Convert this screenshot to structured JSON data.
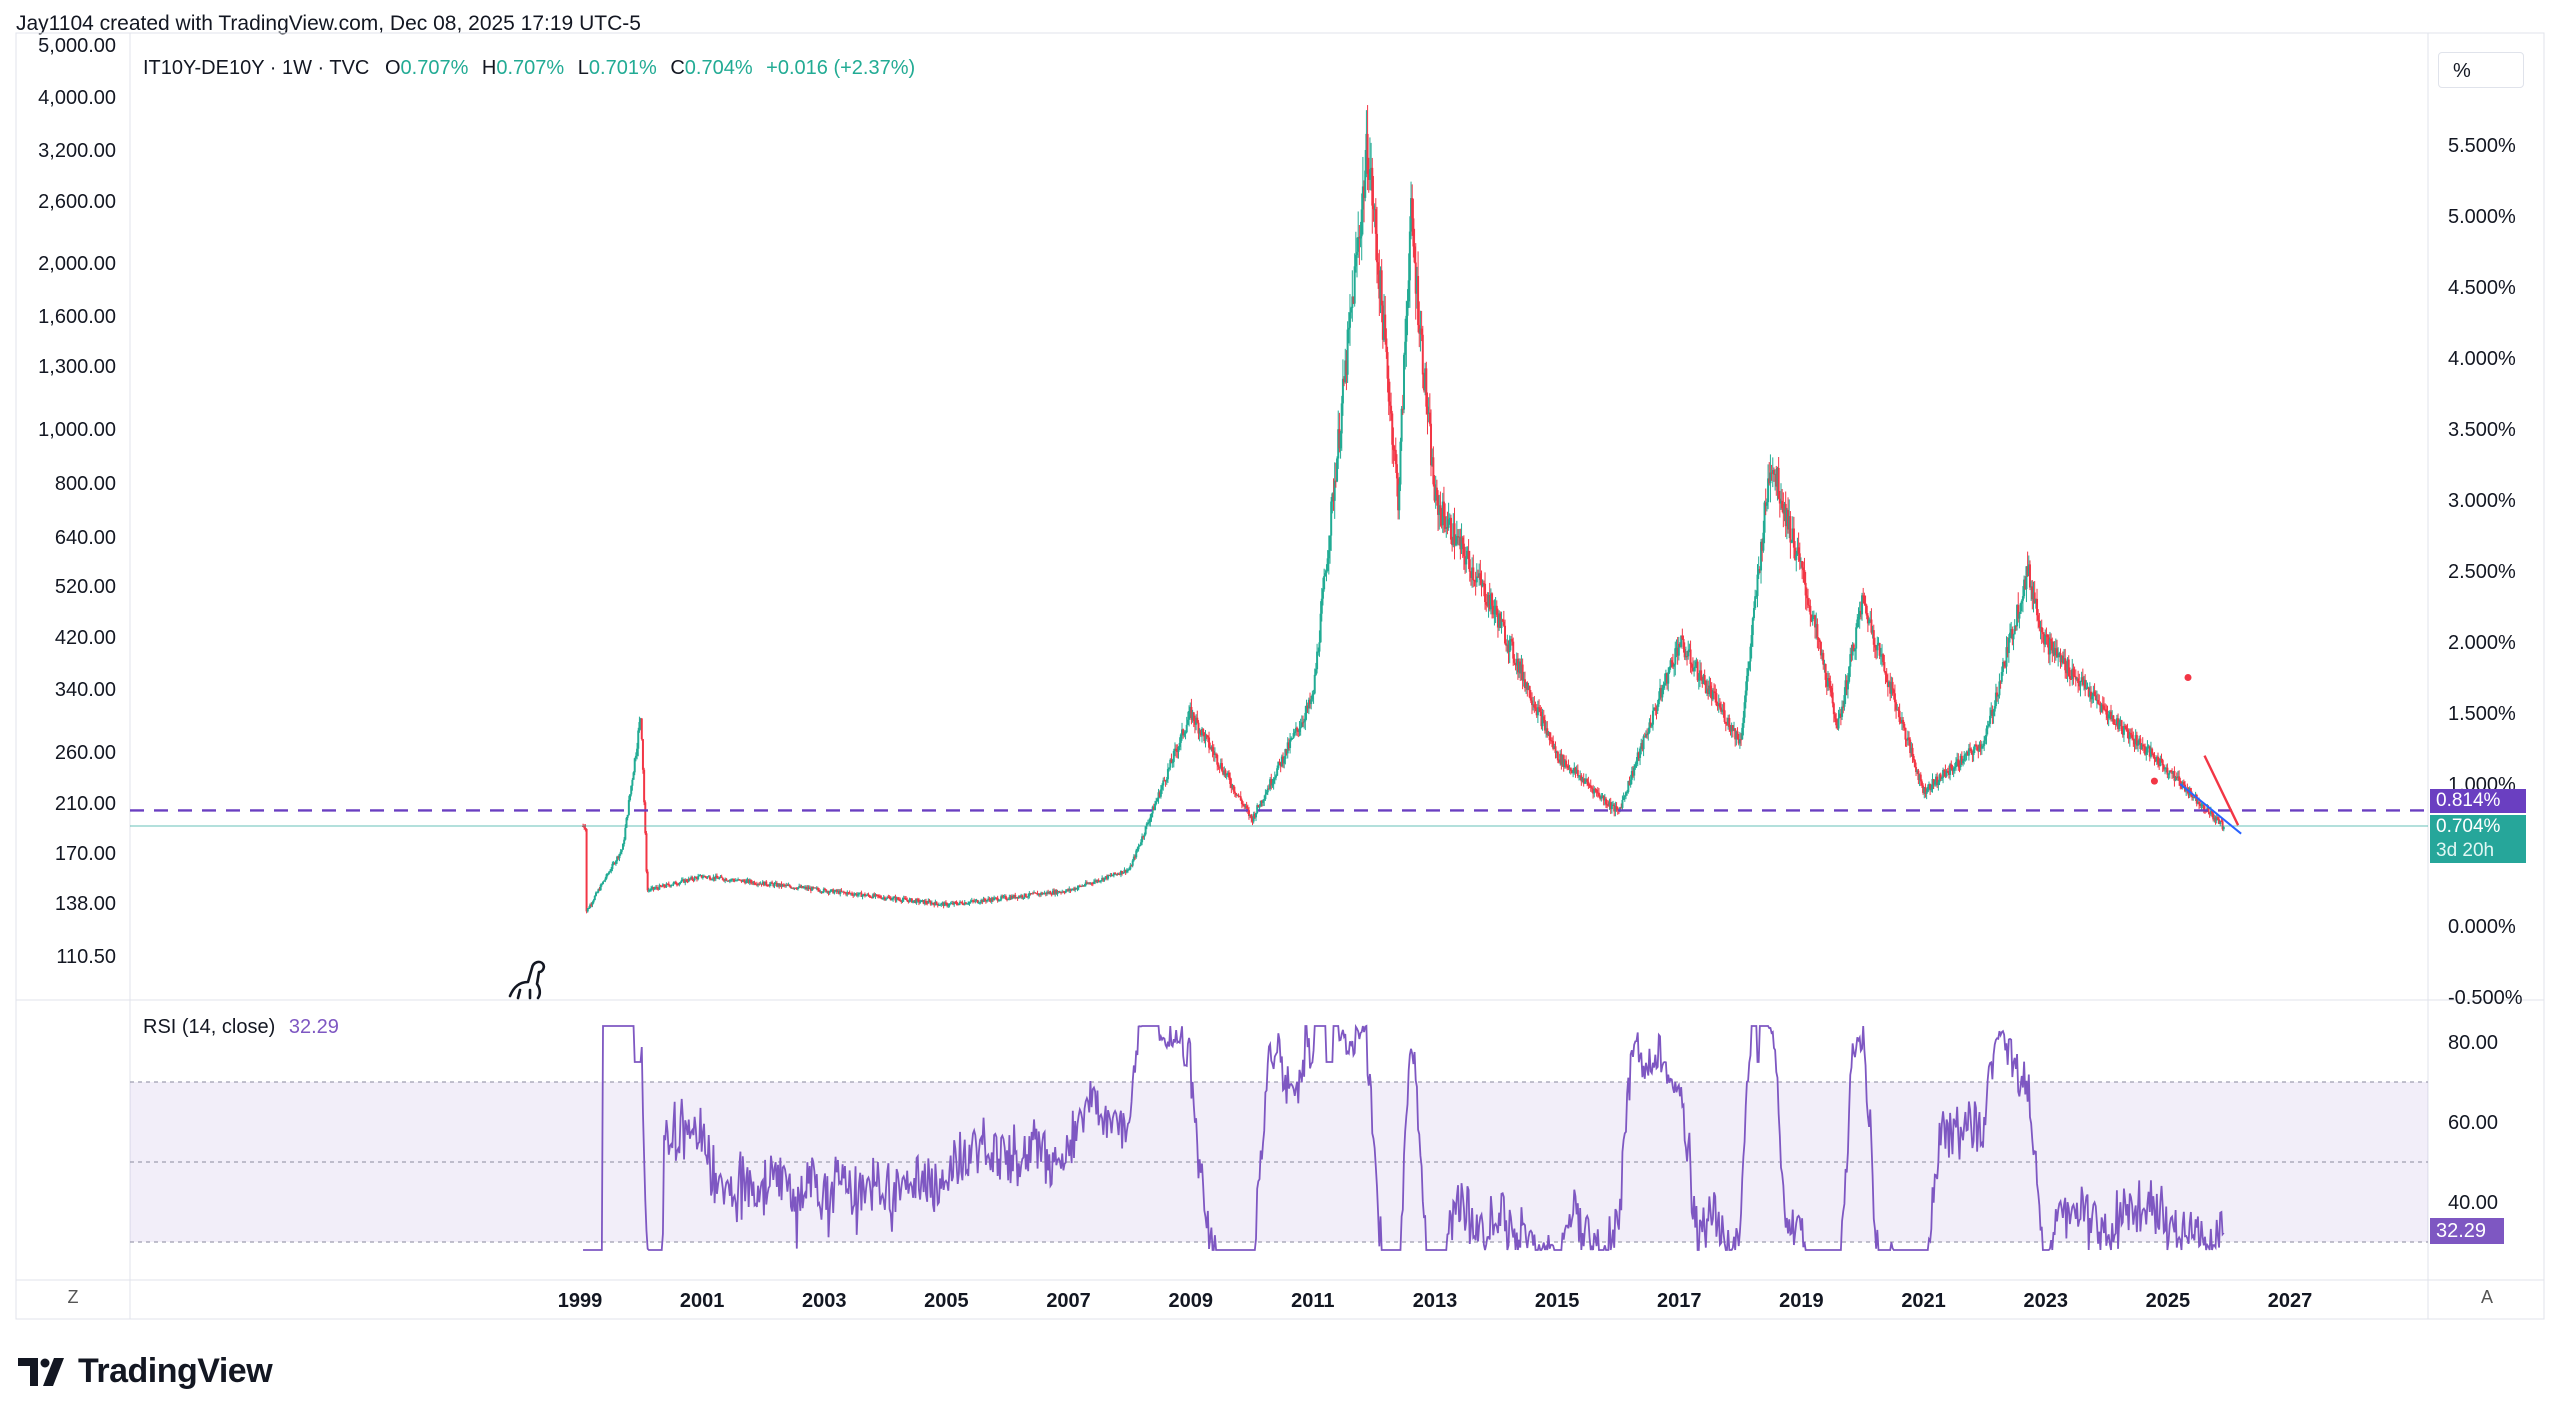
{
  "header": {
    "credit": "Jay1104 created with TradingView.com, Dec 08, 2025 17:19 UTC-5"
  },
  "legend": {
    "symbol": "IT10Y-DE10Y · 1W · TVC",
    "o_label": "O",
    "o_value": "0.707%",
    "h_label": "H",
    "h_value": "0.707%",
    "l_label": "L",
    "l_value": "0.701%",
    "c_label": "C",
    "c_value": "0.704%",
    "change": "+0.016 (+2.37%)"
  },
  "right_axis": {
    "unit_label": "%",
    "badge_dashed": "0.814%",
    "badge_last": "0.704%",
    "badge_countdown": "3d 20h"
  },
  "rsi": {
    "label": "RSI (14, close)",
    "value": "32.29",
    "badge": "32.29"
  },
  "footer": {
    "left_button": "Z",
    "right_button": "A",
    "logo_text": "TradingView"
  },
  "colors": {
    "up": "#22ab94",
    "down": "#f23645",
    "rsi": "#7e57c2",
    "dashed": "#6a3fc1",
    "badge_purple": "#7b3fe4",
    "badge_teal": "#26a69a",
    "trend_red": "#f23645",
    "trend_blue": "#2962ff"
  },
  "chart_data": [
    {
      "type": "candlestick",
      "title": "IT10Y-DE10Y · 1W · TVC",
      "scale": "log (left axis)",
      "left_tick_labels": [
        "5,000.00",
        "4,000.00",
        "3,200.00",
        "2,600.00",
        "2,000.00",
        "1,600.00",
        "1,300.00",
        "1,000.00",
        "800.00",
        "640.00",
        "520.00",
        "420.00",
        "340.00",
        "260.00",
        "210.00",
        "170.00",
        "138.00",
        "110.50"
      ],
      "right_tick_labels": [
        "5.500%",
        "5.000%",
        "4.500%",
        "4.000%",
        "3.500%",
        "3.000%",
        "2.500%",
        "2.000%",
        "1.500%",
        "1.000%",
        "0.500%",
        "0.000%",
        "-0.500%"
      ],
      "x_tick_labels": [
        "1999",
        "2001",
        "2003",
        "2005",
        "2007",
        "2009",
        "2011",
        "2013",
        "2015",
        "2017",
        "2019",
        "2021",
        "2023",
        "2025",
        "2027"
      ],
      "approx_spread_percent": [
        {
          "x": "1999.1",
          "y": 0.1
        },
        {
          "x": "1999.7",
          "y": 0.55
        },
        {
          "x": "2000.0",
          "y": 1.5
        },
        {
          "x": "2000.1",
          "y": 0.25
        },
        {
          "x": "2001.0",
          "y": 0.35
        },
        {
          "x": "2003.0",
          "y": 0.25
        },
        {
          "x": "2005.0",
          "y": 0.15
        },
        {
          "x": "2007.0",
          "y": 0.25
        },
        {
          "x": "2008.0",
          "y": 0.4
        },
        {
          "x": "2009.0",
          "y": 1.5
        },
        {
          "x": "2010.0",
          "y": 0.75
        },
        {
          "x": "2011.0",
          "y": 1.6
        },
        {
          "x": "2011.9",
          "y": 5.5
        },
        {
          "x": "2012.4",
          "y": 3.0
        },
        {
          "x": "2012.6",
          "y": 5.0
        },
        {
          "x": "2013.0",
          "y": 3.0
        },
        {
          "x": "2014.0",
          "y": 2.2
        },
        {
          "x": "2015.0",
          "y": 1.2
        },
        {
          "x": "2016.0",
          "y": 0.8
        },
        {
          "x": "2017.0",
          "y": 2.0
        },
        {
          "x": "2018.0",
          "y": 1.3
        },
        {
          "x": "2018.5",
          "y": 3.3
        },
        {
          "x": "2019.0",
          "y": 2.5
        },
        {
          "x": "2019.6",
          "y": 1.4
        },
        {
          "x": "2020.0",
          "y": 2.3
        },
        {
          "x": "2021.0",
          "y": 0.95
        },
        {
          "x": "2022.0",
          "y": 1.3
        },
        {
          "x": "2022.7",
          "y": 2.5
        },
        {
          "x": "2023.0",
          "y": 2.0
        },
        {
          "x": "2024.0",
          "y": 1.5
        },
        {
          "x": "2025.0",
          "y": 1.1
        },
        {
          "x": "2025.9",
          "y": 0.704
        }
      ],
      "horizontal_line": 0.814,
      "last": 0.704
    },
    {
      "type": "line",
      "title": "RSI (14, close)",
      "tick_labels": [
        "80.00",
        "60.00",
        "40.00"
      ],
      "bands": [
        30,
        50,
        70
      ],
      "last": 32.29
    }
  ]
}
